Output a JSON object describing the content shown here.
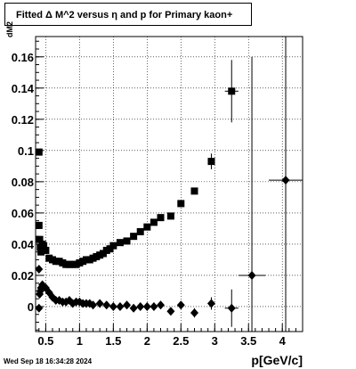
{
  "chart_data": {
    "type": "scatter",
    "title": "Fitted Δ M^2 versus η and p for Primary kaon+",
    "xlabel": "p[GeV/c]",
    "ylabel": "dM2",
    "xlim": [
      0.35,
      4.3
    ],
    "ylim": [
      -0.016,
      0.173
    ],
    "grid": true,
    "x_ticks": [
      {
        "value": 0.5,
        "label": "0.5"
      },
      {
        "value": 1.0,
        "label": "1"
      },
      {
        "value": 1.5,
        "label": "1.5"
      },
      {
        "value": 2.0,
        "label": "2"
      },
      {
        "value": 2.5,
        "label": "2.5"
      },
      {
        "value": 3.0,
        "label": "3"
      },
      {
        "value": 3.5,
        "label": "3.5"
      },
      {
        "value": 4.0,
        "label": "4"
      }
    ],
    "y_ticks": [
      {
        "value": 0.0,
        "label": "0"
      },
      {
        "value": 0.02,
        "label": "0.02"
      },
      {
        "value": 0.04,
        "label": "0.04"
      },
      {
        "value": 0.06,
        "label": "0.06"
      },
      {
        "value": 0.08,
        "label": "0.08"
      },
      {
        "value": 0.1,
        "label": "0.1"
      },
      {
        "value": 0.12,
        "label": "0.12"
      },
      {
        "value": 0.14,
        "label": "0.14"
      },
      {
        "value": 0.16,
        "label": "0.16"
      }
    ],
    "series": [
      {
        "marker": "square",
        "points": [
          {
            "x": 0.4,
            "y": 0.099
          },
          {
            "x": 0.4,
            "y": 0.052
          },
          {
            "x": 0.41,
            "y": 0.043
          },
          {
            "x": 0.42,
            "y": 0.038
          },
          {
            "x": 0.43,
            "y": 0.035
          },
          {
            "x": 0.45,
            "y": 0.04
          },
          {
            "x": 0.47,
            "y": 0.039
          },
          {
            "x": 0.5,
            "y": 0.036
          },
          {
            "x": 0.55,
            "y": 0.031
          },
          {
            "x": 0.6,
            "y": 0.03
          },
          {
            "x": 0.65,
            "y": 0.029
          },
          {
            "x": 0.7,
            "y": 0.029
          },
          {
            "x": 0.75,
            "y": 0.028
          },
          {
            "x": 0.8,
            "y": 0.027
          },
          {
            "x": 0.85,
            "y": 0.027
          },
          {
            "x": 0.9,
            "y": 0.027
          },
          {
            "x": 0.95,
            "y": 0.027
          },
          {
            "x": 1.0,
            "y": 0.028
          },
          {
            "x": 1.05,
            "y": 0.029
          },
          {
            "x": 1.1,
            "y": 0.03
          },
          {
            "x": 1.15,
            "y": 0.03
          },
          {
            "x": 1.2,
            "y": 0.031
          },
          {
            "x": 1.25,
            "y": 0.032
          },
          {
            "x": 1.3,
            "y": 0.033
          },
          {
            "x": 1.35,
            "y": 0.034
          },
          {
            "x": 1.4,
            "y": 0.036
          },
          {
            "x": 1.45,
            "y": 0.037
          },
          {
            "x": 1.5,
            "y": 0.039
          },
          {
            "x": 1.6,
            "y": 0.041
          },
          {
            "x": 1.7,
            "y": 0.042
          },
          {
            "x": 1.8,
            "y": 0.045
          },
          {
            "x": 1.9,
            "y": 0.048
          },
          {
            "x": 2.0,
            "y": 0.051
          },
          {
            "x": 2.1,
            "y": 0.054
          },
          {
            "x": 2.2,
            "y": 0.057
          },
          {
            "x": 2.35,
            "y": 0.058
          },
          {
            "x": 2.5,
            "y": 0.066
          },
          {
            "x": 2.7,
            "y": 0.074
          },
          {
            "x": 2.95,
            "y": 0.093,
            "yerr": 0.005,
            "xerr": 0.05
          },
          {
            "x": 3.25,
            "y": 0.138,
            "yerr": 0.02,
            "xerr": 0.1
          }
        ]
      },
      {
        "marker": "diamond",
        "points": [
          {
            "x": 0.4,
            "y": 0.024
          },
          {
            "x": 0.4,
            "y": -0.001
          },
          {
            "x": 0.41,
            "y": 0.008
          },
          {
            "x": 0.42,
            "y": 0.01
          },
          {
            "x": 0.43,
            "y": 0.012
          },
          {
            "x": 0.45,
            "y": 0.014
          },
          {
            "x": 0.47,
            "y": 0.013
          },
          {
            "x": 0.5,
            "y": 0.012
          },
          {
            "x": 0.55,
            "y": 0.009
          },
          {
            "x": 0.6,
            "y": 0.006
          },
          {
            "x": 0.65,
            "y": 0.004
          },
          {
            "x": 0.7,
            "y": 0.004
          },
          {
            "x": 0.75,
            "y": 0.003
          },
          {
            "x": 0.8,
            "y": 0.003
          },
          {
            "x": 0.85,
            "y": 0.004
          },
          {
            "x": 0.9,
            "y": 0.002
          },
          {
            "x": 0.95,
            "y": 0.003
          },
          {
            "x": 1.0,
            "y": 0.003
          },
          {
            "x": 1.05,
            "y": 0.002
          },
          {
            "x": 1.1,
            "y": 0.002
          },
          {
            "x": 1.15,
            "y": 0.002
          },
          {
            "x": 1.2,
            "y": 0.001
          },
          {
            "x": 1.3,
            "y": 0.002
          },
          {
            "x": 1.4,
            "y": 0.001
          },
          {
            "x": 1.5,
            "y": 0.0
          },
          {
            "x": 1.6,
            "y": 0.0
          },
          {
            "x": 1.7,
            "y": 0.001
          },
          {
            "x": 1.8,
            "y": -0.001
          },
          {
            "x": 1.9,
            "y": 0.0
          },
          {
            "x": 2.0,
            "y": 0.0
          },
          {
            "x": 2.1,
            "y": 0.0
          },
          {
            "x": 2.2,
            "y": 0.001
          },
          {
            "x": 2.35,
            "y": -0.003
          },
          {
            "x": 2.5,
            "y": 0.001
          },
          {
            "x": 2.7,
            "y": -0.004,
            "yerr": 0.003,
            "xerr": 0.05
          },
          {
            "x": 2.95,
            "y": 0.002,
            "yerr": 0.004,
            "xerr": 0.05
          },
          {
            "x": 3.25,
            "y": -0.001,
            "yerr": 0.012,
            "xerr": 0.1
          },
          {
            "x": 3.55,
            "y": 0.02,
            "yerr": 0.14,
            "xerr": 0.2
          },
          {
            "x": 4.05,
            "y": 0.081,
            "yerr": 0.12,
            "xerr": 0.25
          }
        ]
      }
    ],
    "footer": "Wed Sep 18 16:34:28 2024"
  }
}
